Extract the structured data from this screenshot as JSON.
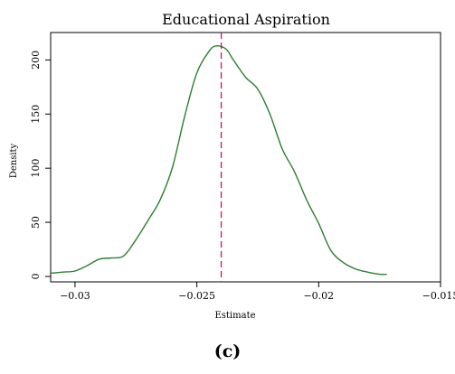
{
  "chart_data": {
    "type": "line",
    "title": "Educational Aspiration",
    "xlabel": "Estimate",
    "ylabel": "Density",
    "xlim": [
      -0.031,
      -0.015
    ],
    "ylim": [
      0,
      222
    ],
    "xticks": [
      -0.03,
      -0.025,
      -0.02,
      -0.015
    ],
    "xtick_labels": [
      "−0.03",
      "−0.025",
      "−0.02",
      "−0.015"
    ],
    "yticks": [
      0,
      50,
      100,
      150,
      200
    ],
    "ytick_labels": [
      "0",
      "50",
      "100",
      "150",
      "200"
    ],
    "grid": false,
    "series": [
      {
        "color": "#2e7d32",
        "x": [
          -0.031,
          -0.0305,
          -0.03,
          -0.0295,
          -0.029,
          -0.0285,
          -0.028,
          -0.0275,
          -0.027,
          -0.0265,
          -0.026,
          -0.0255,
          -0.025,
          -0.0245,
          -0.0242,
          -0.0238,
          -0.0235,
          -0.023,
          -0.0225,
          -0.022,
          -0.0215,
          -0.021,
          -0.0205,
          -0.02,
          -0.0195,
          -0.019,
          -0.0185,
          -0.018,
          -0.0175,
          -0.0172
        ],
        "y": [
          3,
          4,
          5,
          10,
          16,
          17,
          19,
          34,
          52,
          71,
          101,
          148,
          188,
          208,
          213,
          210,
          200,
          184,
          173,
          150,
          118,
          97,
          71,
          49,
          24,
          13,
          7,
          4,
          2,
          2
        ]
      }
    ],
    "reference_line": {
      "x": -0.024,
      "color": "#c2185b",
      "style": "dashed"
    }
  },
  "figure": {
    "panel_label": "(c)"
  }
}
